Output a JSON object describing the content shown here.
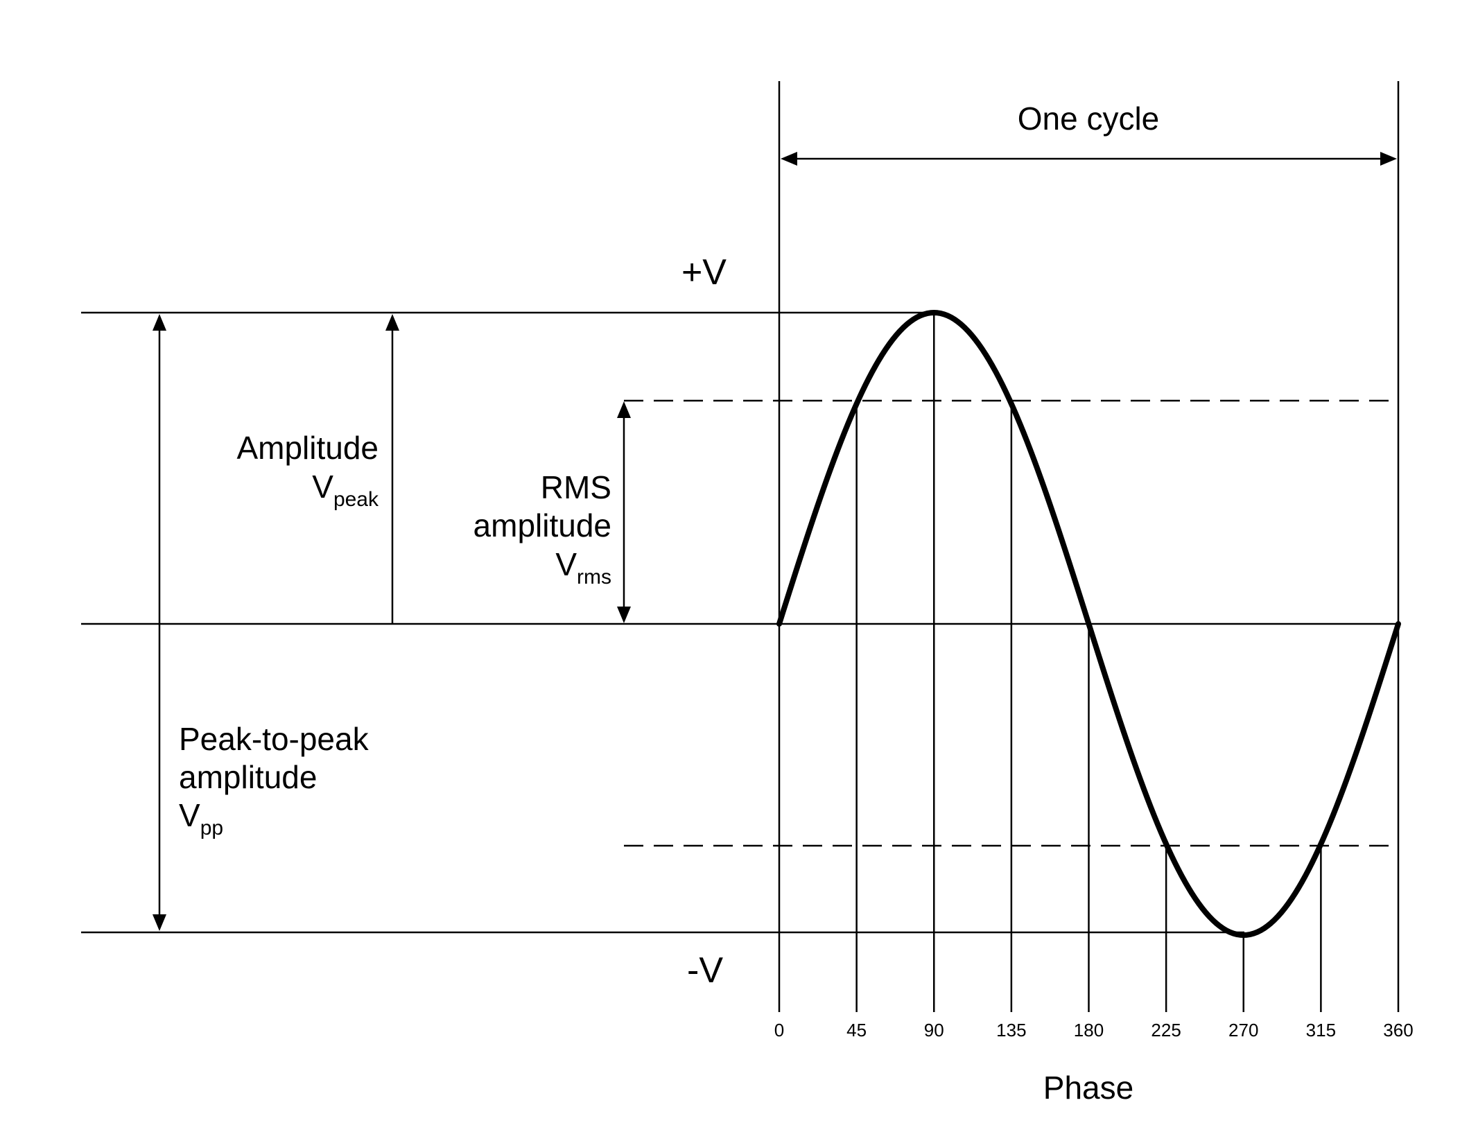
{
  "labels": {
    "one_cycle": "One cycle",
    "plus_v": "+V",
    "minus_v": "-V",
    "amplitude": "Amplitude",
    "vpeak_base": "V",
    "vpeak_sub": "peak",
    "rms_line1": "RMS",
    "rms_line2": "amplitude",
    "vrms_base": "V",
    "vrms_sub": "rms",
    "ptp_line1": "Peak-to-peak",
    "ptp_line2": "amplitude",
    "vpp_base": "V",
    "vpp_sub": "pp",
    "phase": "Phase"
  },
  "phase_ticks": [
    "0",
    "45",
    "90",
    "135",
    "180",
    "225",
    "270",
    "315",
    "360"
  ],
  "phase_values": [
    0,
    45,
    90,
    135,
    180,
    225,
    270,
    315,
    360
  ],
  "rms_fraction": 0.7071,
  "colors": {
    "ink": "#000000",
    "background": "#ffffff"
  }
}
